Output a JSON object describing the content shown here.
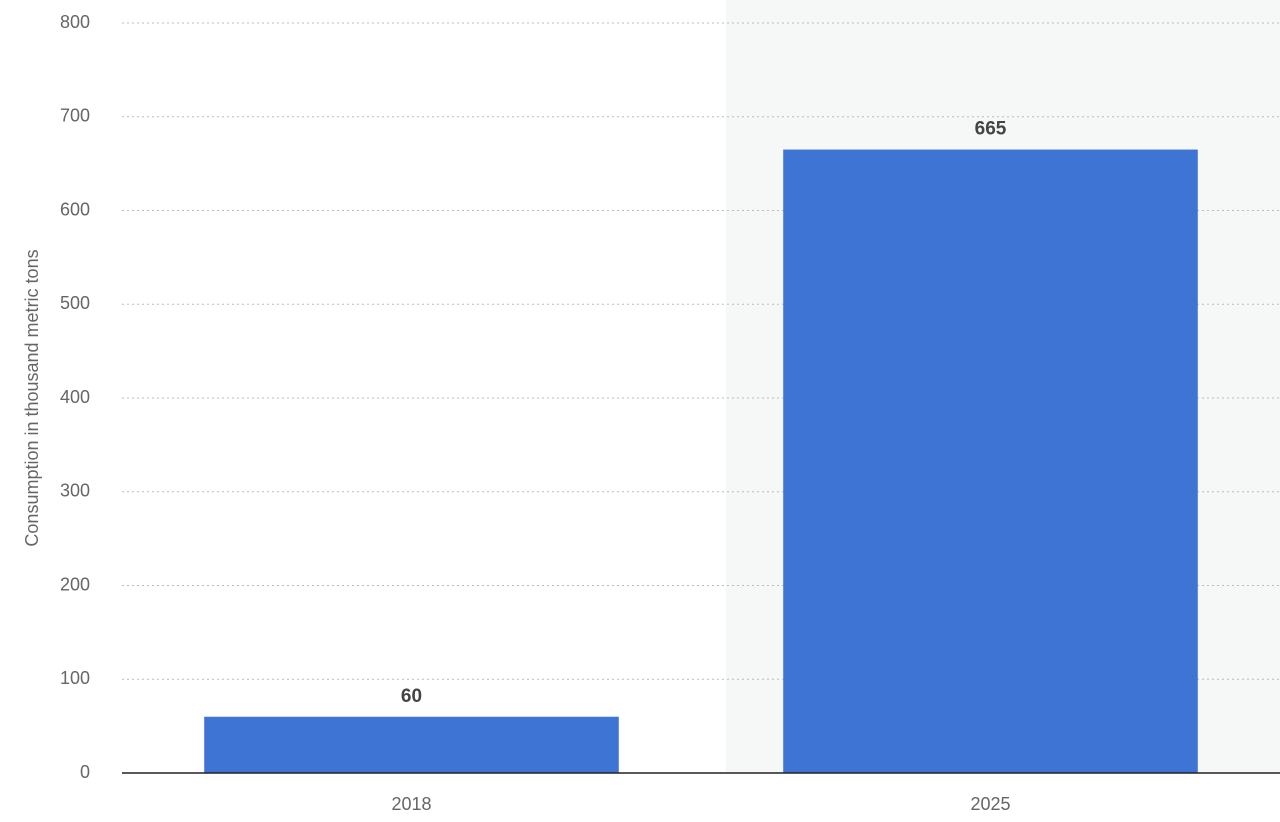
{
  "chart_data": {
    "type": "bar",
    "y_label": "Consumption in thousand metric tons",
    "categories": [
      "2018",
      "2025"
    ],
    "values": [
      60,
      665
    ],
    "color": "#3e74d4",
    "ylim": [
      0,
      800
    ],
    "yticks": [
      0,
      100,
      200,
      300,
      400,
      500,
      600,
      700,
      800
    ],
    "grid": true
  }
}
